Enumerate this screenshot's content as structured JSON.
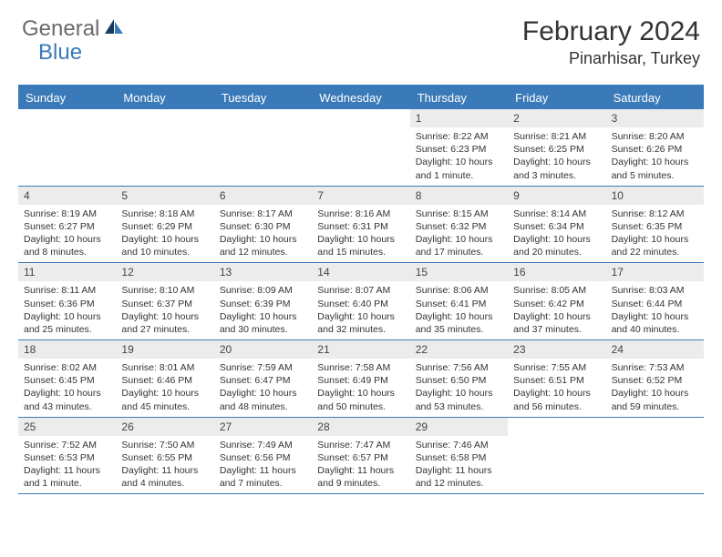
{
  "logo": {
    "text1": "General",
    "text2": "Blue"
  },
  "title": "February 2024",
  "location": "Pinarhisar, Turkey",
  "colors": {
    "header_bg": "#3a7ab8",
    "daynum_bg": "#ececec",
    "border": "#3a7ab8",
    "text": "#333333",
    "logo_gray": "#6a6a6a"
  },
  "daysOfWeek": [
    "Sunday",
    "Monday",
    "Tuesday",
    "Wednesday",
    "Thursday",
    "Friday",
    "Saturday"
  ],
  "weeks": [
    [
      {
        "n": "",
        "lines": []
      },
      {
        "n": "",
        "lines": []
      },
      {
        "n": "",
        "lines": []
      },
      {
        "n": "",
        "lines": []
      },
      {
        "n": "1",
        "lines": [
          "Sunrise: 8:22 AM",
          "Sunset: 6:23 PM",
          "Daylight: 10 hours and 1 minute."
        ]
      },
      {
        "n": "2",
        "lines": [
          "Sunrise: 8:21 AM",
          "Sunset: 6:25 PM",
          "Daylight: 10 hours and 3 minutes."
        ]
      },
      {
        "n": "3",
        "lines": [
          "Sunrise: 8:20 AM",
          "Sunset: 6:26 PM",
          "Daylight: 10 hours and 5 minutes."
        ]
      }
    ],
    [
      {
        "n": "4",
        "lines": [
          "Sunrise: 8:19 AM",
          "Sunset: 6:27 PM",
          "Daylight: 10 hours and 8 minutes."
        ]
      },
      {
        "n": "5",
        "lines": [
          "Sunrise: 8:18 AM",
          "Sunset: 6:29 PM",
          "Daylight: 10 hours and 10 minutes."
        ]
      },
      {
        "n": "6",
        "lines": [
          "Sunrise: 8:17 AM",
          "Sunset: 6:30 PM",
          "Daylight: 10 hours and 12 minutes."
        ]
      },
      {
        "n": "7",
        "lines": [
          "Sunrise: 8:16 AM",
          "Sunset: 6:31 PM",
          "Daylight: 10 hours and 15 minutes."
        ]
      },
      {
        "n": "8",
        "lines": [
          "Sunrise: 8:15 AM",
          "Sunset: 6:32 PM",
          "Daylight: 10 hours and 17 minutes."
        ]
      },
      {
        "n": "9",
        "lines": [
          "Sunrise: 8:14 AM",
          "Sunset: 6:34 PM",
          "Daylight: 10 hours and 20 minutes."
        ]
      },
      {
        "n": "10",
        "lines": [
          "Sunrise: 8:12 AM",
          "Sunset: 6:35 PM",
          "Daylight: 10 hours and 22 minutes."
        ]
      }
    ],
    [
      {
        "n": "11",
        "lines": [
          "Sunrise: 8:11 AM",
          "Sunset: 6:36 PM",
          "Daylight: 10 hours and 25 minutes."
        ]
      },
      {
        "n": "12",
        "lines": [
          "Sunrise: 8:10 AM",
          "Sunset: 6:37 PM",
          "Daylight: 10 hours and 27 minutes."
        ]
      },
      {
        "n": "13",
        "lines": [
          "Sunrise: 8:09 AM",
          "Sunset: 6:39 PM",
          "Daylight: 10 hours and 30 minutes."
        ]
      },
      {
        "n": "14",
        "lines": [
          "Sunrise: 8:07 AM",
          "Sunset: 6:40 PM",
          "Daylight: 10 hours and 32 minutes."
        ]
      },
      {
        "n": "15",
        "lines": [
          "Sunrise: 8:06 AM",
          "Sunset: 6:41 PM",
          "Daylight: 10 hours and 35 minutes."
        ]
      },
      {
        "n": "16",
        "lines": [
          "Sunrise: 8:05 AM",
          "Sunset: 6:42 PM",
          "Daylight: 10 hours and 37 minutes."
        ]
      },
      {
        "n": "17",
        "lines": [
          "Sunrise: 8:03 AM",
          "Sunset: 6:44 PM",
          "Daylight: 10 hours and 40 minutes."
        ]
      }
    ],
    [
      {
        "n": "18",
        "lines": [
          "Sunrise: 8:02 AM",
          "Sunset: 6:45 PM",
          "Daylight: 10 hours and 43 minutes."
        ]
      },
      {
        "n": "19",
        "lines": [
          "Sunrise: 8:01 AM",
          "Sunset: 6:46 PM",
          "Daylight: 10 hours and 45 minutes."
        ]
      },
      {
        "n": "20",
        "lines": [
          "Sunrise: 7:59 AM",
          "Sunset: 6:47 PM",
          "Daylight: 10 hours and 48 minutes."
        ]
      },
      {
        "n": "21",
        "lines": [
          "Sunrise: 7:58 AM",
          "Sunset: 6:49 PM",
          "Daylight: 10 hours and 50 minutes."
        ]
      },
      {
        "n": "22",
        "lines": [
          "Sunrise: 7:56 AM",
          "Sunset: 6:50 PM",
          "Daylight: 10 hours and 53 minutes."
        ]
      },
      {
        "n": "23",
        "lines": [
          "Sunrise: 7:55 AM",
          "Sunset: 6:51 PM",
          "Daylight: 10 hours and 56 minutes."
        ]
      },
      {
        "n": "24",
        "lines": [
          "Sunrise: 7:53 AM",
          "Sunset: 6:52 PM",
          "Daylight: 10 hours and 59 minutes."
        ]
      }
    ],
    [
      {
        "n": "25",
        "lines": [
          "Sunrise: 7:52 AM",
          "Sunset: 6:53 PM",
          "Daylight: 11 hours and 1 minute."
        ]
      },
      {
        "n": "26",
        "lines": [
          "Sunrise: 7:50 AM",
          "Sunset: 6:55 PM",
          "Daylight: 11 hours and 4 minutes."
        ]
      },
      {
        "n": "27",
        "lines": [
          "Sunrise: 7:49 AM",
          "Sunset: 6:56 PM",
          "Daylight: 11 hours and 7 minutes."
        ]
      },
      {
        "n": "28",
        "lines": [
          "Sunrise: 7:47 AM",
          "Sunset: 6:57 PM",
          "Daylight: 11 hours and 9 minutes."
        ]
      },
      {
        "n": "29",
        "lines": [
          "Sunrise: 7:46 AM",
          "Sunset: 6:58 PM",
          "Daylight: 11 hours and 12 minutes."
        ]
      },
      {
        "n": "",
        "lines": []
      },
      {
        "n": "",
        "lines": []
      }
    ]
  ]
}
